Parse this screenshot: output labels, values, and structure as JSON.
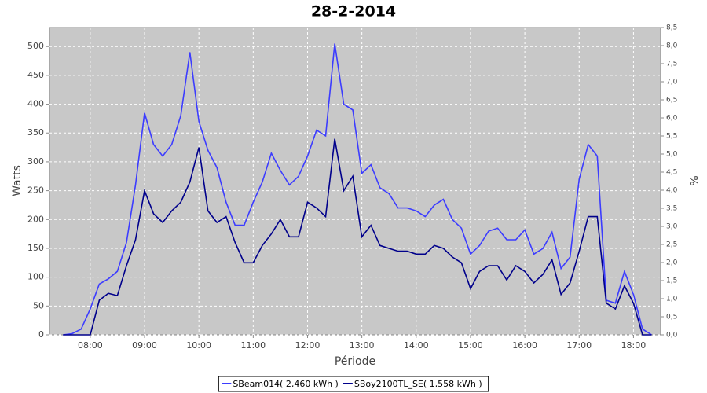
{
  "chart_data": {
    "type": "line",
    "title": "28-2-2014",
    "xlabel": "Période",
    "ylabel": "Watts",
    "y2label": "%",
    "x": [
      "07:30",
      "07:40",
      "07:50",
      "08:00",
      "08:10",
      "08:20",
      "08:30",
      "08:40",
      "08:50",
      "09:00",
      "09:10",
      "09:20",
      "09:30",
      "09:40",
      "09:50",
      "10:00",
      "10:10",
      "10:20",
      "10:30",
      "10:40",
      "10:50",
      "11:00",
      "11:10",
      "11:20",
      "11:30",
      "11:40",
      "11:50",
      "12:00",
      "12:10",
      "12:20",
      "12:30",
      "12:40",
      "12:50",
      "13:00",
      "13:10",
      "13:20",
      "13:30",
      "13:40",
      "13:50",
      "14:00",
      "14:10",
      "14:20",
      "14:30",
      "14:40",
      "14:50",
      "15:00",
      "15:10",
      "15:20",
      "15:30",
      "15:40",
      "15:50",
      "16:00",
      "16:10",
      "16:20",
      "16:30",
      "16:40",
      "16:50",
      "17:00",
      "17:10",
      "17:20",
      "17:30",
      "17:40",
      "17:50",
      "18:00",
      "18:10",
      "18:20"
    ],
    "series": [
      {
        "name": "SBeam014( 2,460 kWh )",
        "color": "#3c3cff",
        "values": [
          0,
          2,
          10,
          45,
          88,
          97,
          110,
          160,
          260,
          385,
          330,
          310,
          330,
          380,
          490,
          370,
          320,
          290,
          230,
          190,
          190,
          230,
          265,
          315,
          285,
          260,
          275,
          310,
          355,
          345,
          505,
          400,
          390,
          280,
          295,
          255,
          245,
          220,
          220,
          215,
          205,
          225,
          235,
          200,
          185,
          140,
          155,
          180,
          185,
          165,
          165,
          182,
          140,
          150,
          178,
          115,
          135,
          270,
          330,
          310,
          60,
          55,
          110,
          70,
          10,
          0
        ]
      },
      {
        "name": "SBoy2100TL_SE( 1,558 kWh )",
        "color": "#00008b",
        "values": [
          0,
          0,
          0,
          0,
          60,
          72,
          68,
          120,
          165,
          250,
          210,
          195,
          215,
          230,
          265,
          325,
          215,
          195,
          205,
          160,
          125,
          125,
          155,
          175,
          200,
          170,
          170,
          230,
          220,
          205,
          340,
          250,
          275,
          170,
          190,
          155,
          150,
          145,
          145,
          140,
          140,
          155,
          150,
          135,
          125,
          80,
          110,
          120,
          120,
          95,
          120,
          110,
          90,
          105,
          130,
          70,
          90,
          145,
          205,
          205,
          55,
          45,
          85,
          55,
          0,
          0
        ]
      }
    ],
    "xlim": [
      "07:15",
      "18:30"
    ],
    "xticks": [
      "08:00",
      "09:00",
      "10:00",
      "11:00",
      "12:00",
      "13:00",
      "14:00",
      "15:00",
      "16:00",
      "17:00",
      "18:00"
    ],
    "ylim": [
      0,
      533
    ],
    "yticks": [
      0,
      50,
      100,
      150,
      200,
      250,
      300,
      350,
      400,
      450,
      500
    ],
    "y2lim": [
      0,
      8.5
    ],
    "y2ticks": [
      {
        "value": 0,
        "label": "0,0"
      },
      {
        "value": 0.5,
        "label": "0,5"
      },
      {
        "value": 1,
        "label": "1,0"
      },
      {
        "value": 1.5,
        "label": "1,5"
      },
      {
        "value": 2,
        "label": "2,0"
      },
      {
        "value": 2.5,
        "label": "2,5"
      },
      {
        "value": 3,
        "label": "3,0"
      },
      {
        "value": 3.5,
        "label": "3,5"
      },
      {
        "value": 4,
        "label": "4,0"
      },
      {
        "value": 4.5,
        "label": "4,5"
      },
      {
        "value": 5,
        "label": "5,0"
      },
      {
        "value": 5.5,
        "label": "5,5"
      },
      {
        "value": 6,
        "label": "6,0"
      },
      {
        "value": 6.5,
        "label": "6,5"
      },
      {
        "value": 7,
        "label": "7,0"
      },
      {
        "value": 7.5,
        "label": "7,5"
      },
      {
        "value": 8,
        "label": "8,0"
      },
      {
        "value": 8.5,
        "label": "8,5"
      }
    ],
    "grid": true,
    "legend": "bottom"
  }
}
